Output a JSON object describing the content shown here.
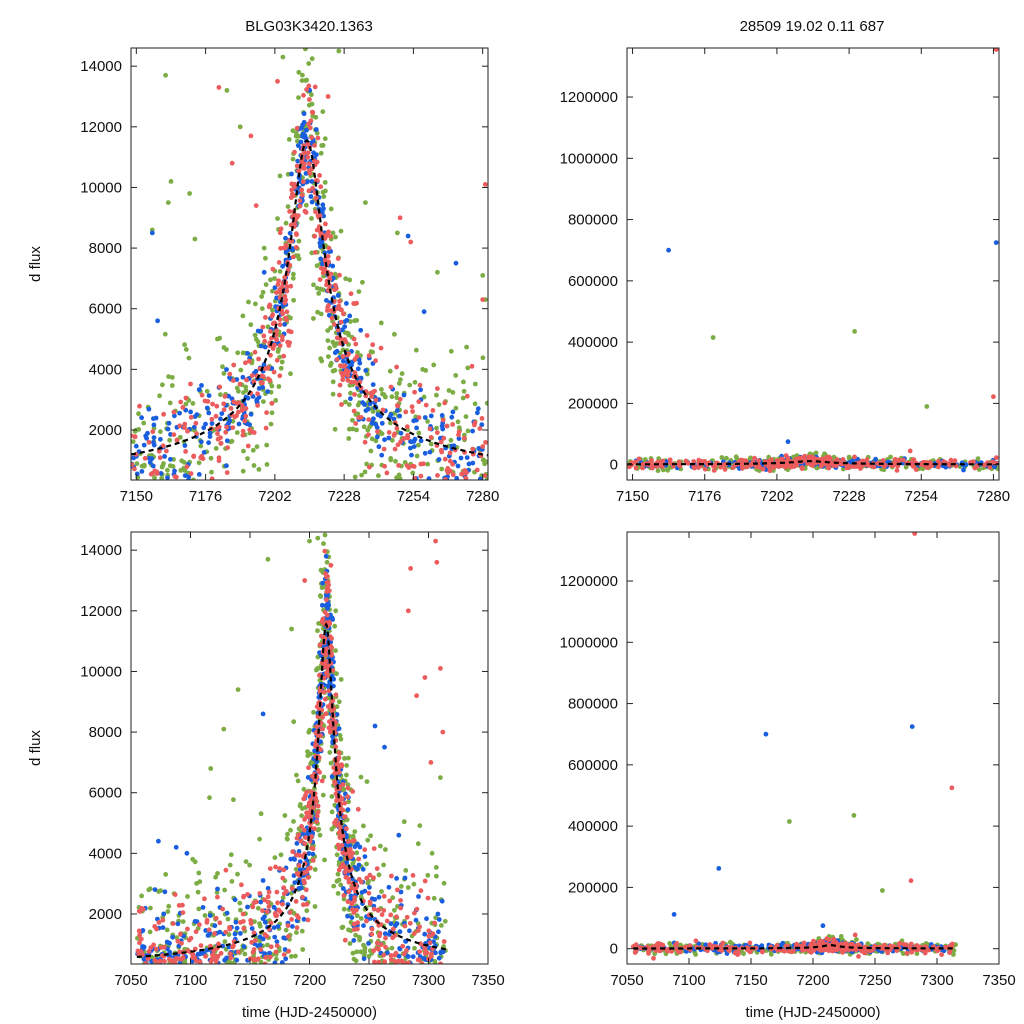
{
  "figure": {
    "title_left": "BLG03K3420.1363",
    "title_right": "28509  19.02  0.11  687",
    "colors": {
      "green": "#7cad44",
      "blue": "#1a5ee0",
      "red": "#ec5c5c",
      "model": "#000000",
      "frame": "#222222"
    }
  },
  "chart_data": [
    {
      "id": "top-left",
      "type": "scatter",
      "xlabel": "",
      "ylabel": "d flux",
      "xlim": [
        7148,
        7282
      ],
      "ylim": [
        350,
        14600
      ],
      "xticks": [
        7150,
        7176,
        7202,
        7228,
        7254,
        7280
      ],
      "yticks": [
        2000,
        4000,
        6000,
        8000,
        10000,
        12000,
        14000
      ],
      "model": {
        "t0": 7214,
        "peak": 11400,
        "width": 10.5,
        "floor": 150
      },
      "series": [
        {
          "name": "green",
          "n": 520,
          "scatter": 0.32,
          "noise": 1500,
          "outliers": [
            [
              7161,
              13700
            ],
            [
              7162,
              9500
            ],
            [
              7163,
              10200
            ],
            [
              7156,
              8600
            ],
            [
              7170,
              9800
            ],
            [
              7172,
              8300
            ],
            [
              7184,
              13200
            ],
            [
              7189,
              12000
            ],
            [
              7198,
              8000
            ],
            [
              7205,
              14300
            ],
            [
              7211,
              13800
            ],
            [
              7220,
              12500
            ],
            [
              7226,
              14500
            ],
            [
              7236,
              9500
            ],
            [
              7248,
              8500
            ],
            [
              7263,
              7200
            ],
            [
              7280,
              7100
            ],
            [
              7281,
              6300
            ]
          ]
        },
        {
          "name": "blue",
          "n": 430,
          "scatter": 0.12,
          "noise": 700,
          "outliers": [
            [
              7156,
              8500
            ],
            [
              7158,
              5600
            ],
            [
              7198,
              7200
            ],
            [
              7252,
              8400
            ],
            [
              7258,
              5900
            ],
            [
              7270,
              7500
            ]
          ]
        },
        {
          "name": "red",
          "n": 480,
          "scatter": 0.2,
          "noise": 900,
          "outliers": [
            [
              7181,
              13300
            ],
            [
              7186,
              10800
            ],
            [
              7193,
              11700
            ],
            [
              7195,
              9400
            ],
            [
              7203,
              13500
            ],
            [
              7222,
              13000
            ],
            [
              7249,
              9000
            ],
            [
              7253,
              8200
            ],
            [
              7281,
              10100
            ],
            [
              7280,
              6300
            ],
            [
              7276,
              4100
            ]
          ]
        }
      ]
    },
    {
      "id": "top-right",
      "type": "scatter",
      "xlabel": "",
      "ylabel": "",
      "xlim": [
        7148,
        7282
      ],
      "ylim": [
        -50000,
        1360000
      ],
      "xticks": [
        7150,
        7176,
        7202,
        7228,
        7254,
        7280
      ],
      "yticks": [
        0,
        200000,
        400000,
        600000,
        800000,
        1000000,
        1200000
      ],
      "model": {
        "t0": 7214,
        "peak": 11400,
        "width": 10.5,
        "floor": 150
      },
      "series": [
        {
          "name": "green",
          "n": 320,
          "scatter": 1.0,
          "noise": 9000,
          "outliers": [
            [
              7179,
              415000
            ],
            [
              7230,
              435000
            ],
            [
              7256,
              190000
            ],
            [
              7208,
              25000
            ],
            [
              7214,
              20000
            ]
          ]
        },
        {
          "name": "blue",
          "n": 240,
          "scatter": 1.0,
          "noise": 6000,
          "outliers": [
            [
              7163,
              700000
            ],
            [
              7281,
              725000
            ],
            [
              7206,
              75000
            ]
          ]
        },
        {
          "name": "red",
          "n": 300,
          "scatter": 1.0,
          "noise": 8000,
          "outliers": [
            [
              7281,
              1355000
            ],
            [
              7280,
              222000
            ],
            [
              7250,
              45000
            ]
          ]
        }
      ]
    },
    {
      "id": "bottom-left",
      "type": "scatter",
      "xlabel": "time (HJD-2450000)",
      "ylabel": "d flux",
      "xlim": [
        7050,
        7350
      ],
      "ylim": [
        350,
        14600
      ],
      "xticks": [
        7050,
        7100,
        7150,
        7200,
        7250,
        7300,
        7350
      ],
      "yticks": [
        2000,
        4000,
        6000,
        8000,
        10000,
        12000,
        14000
      ],
      "model": {
        "t0": 7214,
        "peak": 11400,
        "width": 10.5,
        "floor": 150
      },
      "data_range": [
        7055,
        7315
      ],
      "series": [
        {
          "name": "green",
          "n": 620,
          "scatter": 0.35,
          "noise": 1600,
          "outliers": [
            [
              7117,
              6800
            ],
            [
              7128,
              8100
            ],
            [
              7140,
              9400
            ],
            [
              7165,
              13700
            ],
            [
              7185,
              11400
            ],
            [
              7200,
              14300
            ],
            [
              7207,
              14400
            ],
            [
              7213,
              14500
            ],
            [
              7222,
              12000
            ],
            [
              7225,
              9000
            ],
            [
              7303,
              4000
            ],
            [
              7310,
              6500
            ]
          ]
        },
        {
          "name": "blue",
          "n": 520,
          "scatter": 0.15,
          "noise": 900,
          "outliers": [
            [
              7073,
              4400
            ],
            [
              7088,
              4200
            ],
            [
              7097,
              4000
            ],
            [
              7161,
              8600
            ],
            [
              7255,
              8200
            ],
            [
              7263,
              7500
            ],
            [
              7275,
              4600
            ]
          ]
        },
        {
          "name": "red",
          "n": 560,
          "scatter": 0.22,
          "noise": 1000,
          "outliers": [
            [
              7196,
              13000
            ],
            [
              7218,
              13500
            ],
            [
              7283,
              12000
            ],
            [
              7285,
              13400
            ],
            [
              7290,
              9200
            ],
            [
              7297,
              9800
            ],
            [
              7302,
              7000
            ],
            [
              7306,
              14300
            ],
            [
              7307,
              13600
            ],
            [
              7310,
              10100
            ],
            [
              7312,
              8000
            ]
          ]
        }
      ]
    },
    {
      "id": "bottom-right",
      "type": "scatter",
      "xlabel": "time (HJD-2450000)",
      "ylabel": "",
      "xlim": [
        7050,
        7350
      ],
      "ylim": [
        -50000,
        1360000
      ],
      "xticks": [
        7050,
        7100,
        7150,
        7200,
        7250,
        7300,
        7350
      ],
      "yticks": [
        0,
        200000,
        400000,
        600000,
        800000,
        1000000,
        1200000
      ],
      "model": {
        "t0": 7214,
        "peak": 11400,
        "width": 10.5,
        "floor": 150
      },
      "data_range": [
        7055,
        7315
      ],
      "series": [
        {
          "name": "green",
          "n": 380,
          "scatter": 1.0,
          "noise": 9000,
          "outliers": [
            [
              7181,
              415000
            ],
            [
              7233,
              435000
            ],
            [
              7256,
              190000
            ],
            [
              7213,
              40000
            ],
            [
              7235,
              30000
            ]
          ]
        },
        {
          "name": "blue",
          "n": 300,
          "scatter": 1.0,
          "noise": 6000,
          "outliers": [
            [
              7162,
              700000
            ],
            [
              7280,
              725000
            ],
            [
              7124,
              262000
            ],
            [
              7088,
              112000
            ],
            [
              7208,
              75000
            ]
          ]
        },
        {
          "name": "red",
          "n": 340,
          "scatter": 1.0,
          "noise": 8000,
          "outliers": [
            [
              7312,
              525000
            ],
            [
              7279,
              222000
            ],
            [
              7282,
              1355000
            ],
            [
              7234,
              45000
            ]
          ]
        }
      ]
    }
  ]
}
